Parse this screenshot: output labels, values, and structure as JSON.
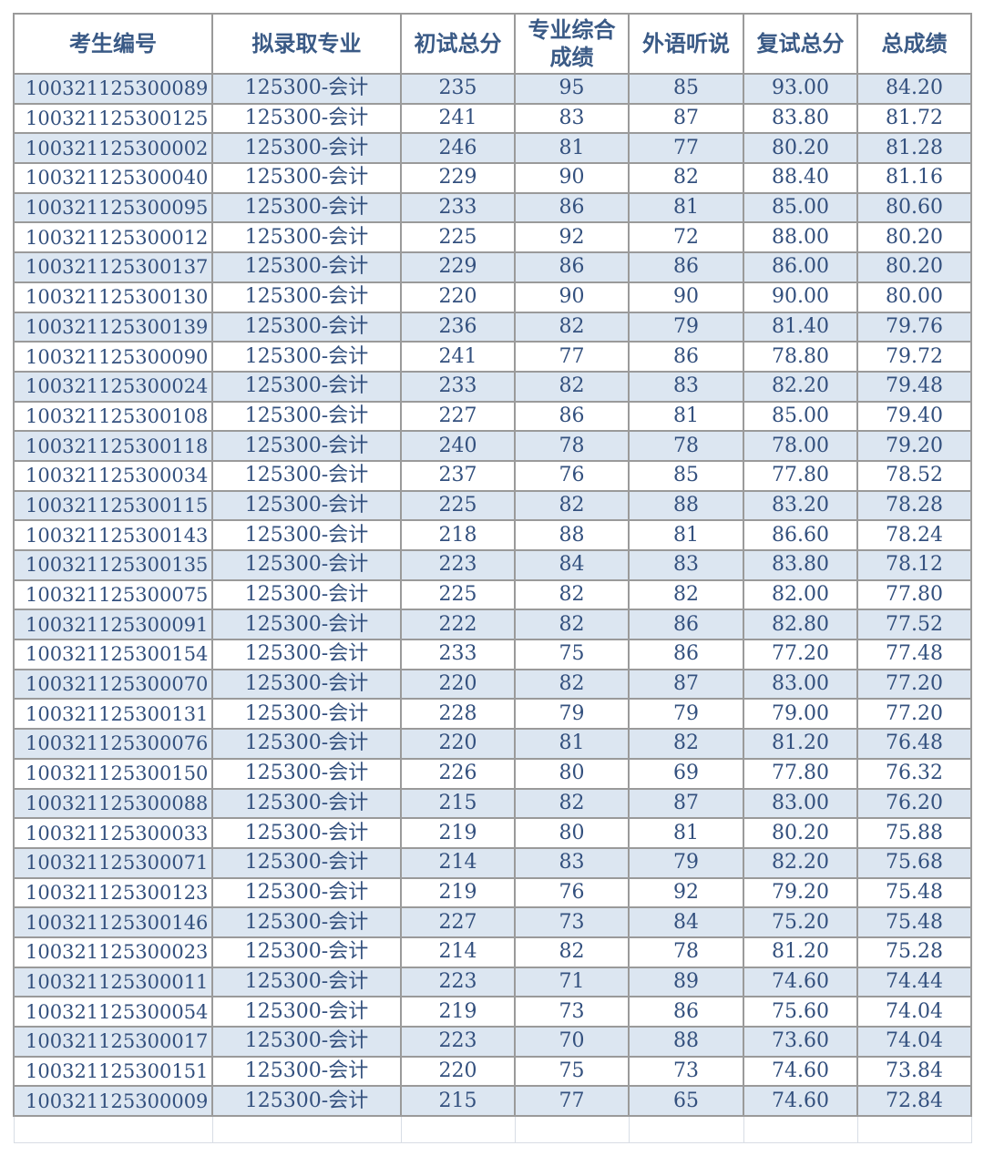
{
  "table": {
    "headers": [
      "考生编号",
      "拟录取专业",
      "初试总分",
      "专业综合成绩",
      "外语听说",
      "复试总分",
      "总成绩"
    ],
    "header_lines": {
      "col3_line1": "专业综合",
      "col3_line2": "成绩"
    },
    "rows": [
      [
        "100321125300089",
        "125300-会计",
        "235",
        "95",
        "85",
        "93.00",
        "84.20"
      ],
      [
        "100321125300125",
        "125300-会计",
        "241",
        "83",
        "87",
        "83.80",
        "81.72"
      ],
      [
        "100321125300002",
        "125300-会计",
        "246",
        "81",
        "77",
        "80.20",
        "81.28"
      ],
      [
        "100321125300040",
        "125300-会计",
        "229",
        "90",
        "82",
        "88.40",
        "81.16"
      ],
      [
        "100321125300095",
        "125300-会计",
        "233",
        "86",
        "81",
        "85.00",
        "80.60"
      ],
      [
        "100321125300012",
        "125300-会计",
        "225",
        "92",
        "72",
        "88.00",
        "80.20"
      ],
      [
        "100321125300137",
        "125300-会计",
        "229",
        "86",
        "86",
        "86.00",
        "80.20"
      ],
      [
        "100321125300130",
        "125300-会计",
        "220",
        "90",
        "90",
        "90.00",
        "80.00"
      ],
      [
        "100321125300139",
        "125300-会计",
        "236",
        "82",
        "79",
        "81.40",
        "79.76"
      ],
      [
        "100321125300090",
        "125300-会计",
        "241",
        "77",
        "86",
        "78.80",
        "79.72"
      ],
      [
        "100321125300024",
        "125300-会计",
        "233",
        "82",
        "83",
        "82.20",
        "79.48"
      ],
      [
        "100321125300108",
        "125300-会计",
        "227",
        "86",
        "81",
        "85.00",
        "79.40"
      ],
      [
        "100321125300118",
        "125300-会计",
        "240",
        "78",
        "78",
        "78.00",
        "79.20"
      ],
      [
        "100321125300034",
        "125300-会计",
        "237",
        "76",
        "85",
        "77.80",
        "78.52"
      ],
      [
        "100321125300115",
        "125300-会计",
        "225",
        "82",
        "88",
        "83.20",
        "78.28"
      ],
      [
        "100321125300143",
        "125300-会计",
        "218",
        "88",
        "81",
        "86.60",
        "78.24"
      ],
      [
        "100321125300135",
        "125300-会计",
        "223",
        "84",
        "83",
        "83.80",
        "78.12"
      ],
      [
        "100321125300075",
        "125300-会计",
        "225",
        "82",
        "82",
        "82.00",
        "77.80"
      ],
      [
        "100321125300091",
        "125300-会计",
        "222",
        "82",
        "86",
        "82.80",
        "77.52"
      ],
      [
        "100321125300154",
        "125300-会计",
        "233",
        "75",
        "86",
        "77.20",
        "77.48"
      ],
      [
        "100321125300070",
        "125300-会计",
        "220",
        "82",
        "87",
        "83.00",
        "77.20"
      ],
      [
        "100321125300131",
        "125300-会计",
        "228",
        "79",
        "79",
        "79.00",
        "77.20"
      ],
      [
        "100321125300076",
        "125300-会计",
        "220",
        "81",
        "82",
        "81.20",
        "76.48"
      ],
      [
        "100321125300150",
        "125300-会计",
        "226",
        "80",
        "69",
        "77.80",
        "76.32"
      ],
      [
        "100321125300088",
        "125300-会计",
        "215",
        "82",
        "87",
        "83.00",
        "76.20"
      ],
      [
        "100321125300033",
        "125300-会计",
        "219",
        "80",
        "81",
        "80.20",
        "75.88"
      ],
      [
        "100321125300071",
        "125300-会计",
        "214",
        "83",
        "79",
        "82.20",
        "75.68"
      ],
      [
        "100321125300123",
        "125300-会计",
        "219",
        "76",
        "92",
        "79.20",
        "75.48"
      ],
      [
        "100321125300146",
        "125300-会计",
        "227",
        "73",
        "84",
        "75.20",
        "75.48"
      ],
      [
        "100321125300023",
        "125300-会计",
        "214",
        "82",
        "78",
        "81.20",
        "75.28"
      ],
      [
        "100321125300011",
        "125300-会计",
        "223",
        "71",
        "89",
        "74.60",
        "74.44"
      ],
      [
        "100321125300054",
        "125300-会计",
        "219",
        "73",
        "86",
        "75.60",
        "74.04"
      ],
      [
        "100321125300017",
        "125300-会计",
        "223",
        "70",
        "88",
        "73.60",
        "74.04"
      ],
      [
        "100321125300151",
        "125300-会计",
        "220",
        "75",
        "73",
        "74.60",
        "73.84"
      ],
      [
        "100321125300009",
        "125300-会计",
        "215",
        "77",
        "65",
        "74.60",
        "72.84"
      ]
    ]
  },
  "colors": {
    "text": "#33507e",
    "alt_row": "#dce6f1",
    "border": "#9a9a9a"
  }
}
